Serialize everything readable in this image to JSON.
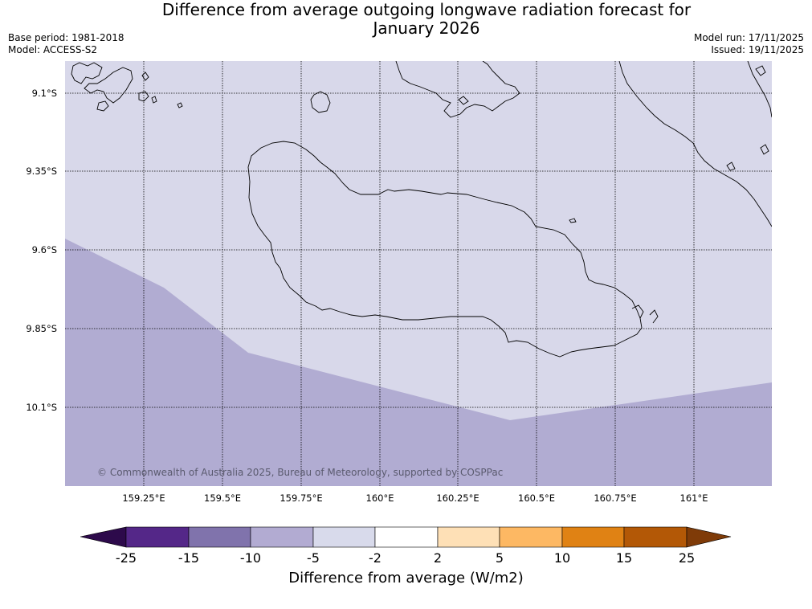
{
  "title": {
    "line1": "Difference from average outgoing longwave radiation forecast for",
    "line2": "January 2026"
  },
  "meta": {
    "base_period": "Base period: 1981-2018",
    "model": "Model: ACCESS-S2",
    "model_run": "Model run: 17/11/2025",
    "issued": "Issued: 19/11/2025"
  },
  "map": {
    "lat_labels": [
      "9.1°S",
      "9.35°S",
      "9.6°S",
      "9.85°S",
      "10.1°S"
    ],
    "lon_labels": [
      "159.25°E",
      "159.5°E",
      "159.75°E",
      "160°E",
      "160.25°E",
      "160.5°E",
      "160.75°E",
      "161°E"
    ],
    "copyright": "© Commonwealth of Australia 2025, Bureau of Meteorology, supported by COSPPac",
    "colors": {
      "light_band": "#d8d8ea",
      "medium_band": "#b1acd2"
    }
  },
  "colorbar": {
    "label": "Difference from average (W/m2)",
    "ticks": [
      "-25",
      "-15",
      "-10",
      "-5",
      "-2",
      "2",
      "5",
      "10",
      "15",
      "25"
    ],
    "colors": [
      "#2d0a4b",
      "#542788",
      "#8073ac",
      "#b2abd2",
      "#d8daeb",
      "#ffffff",
      "#fee0b6",
      "#fdb863",
      "#e08214",
      "#b35806",
      "#7f3b08"
    ]
  }
}
